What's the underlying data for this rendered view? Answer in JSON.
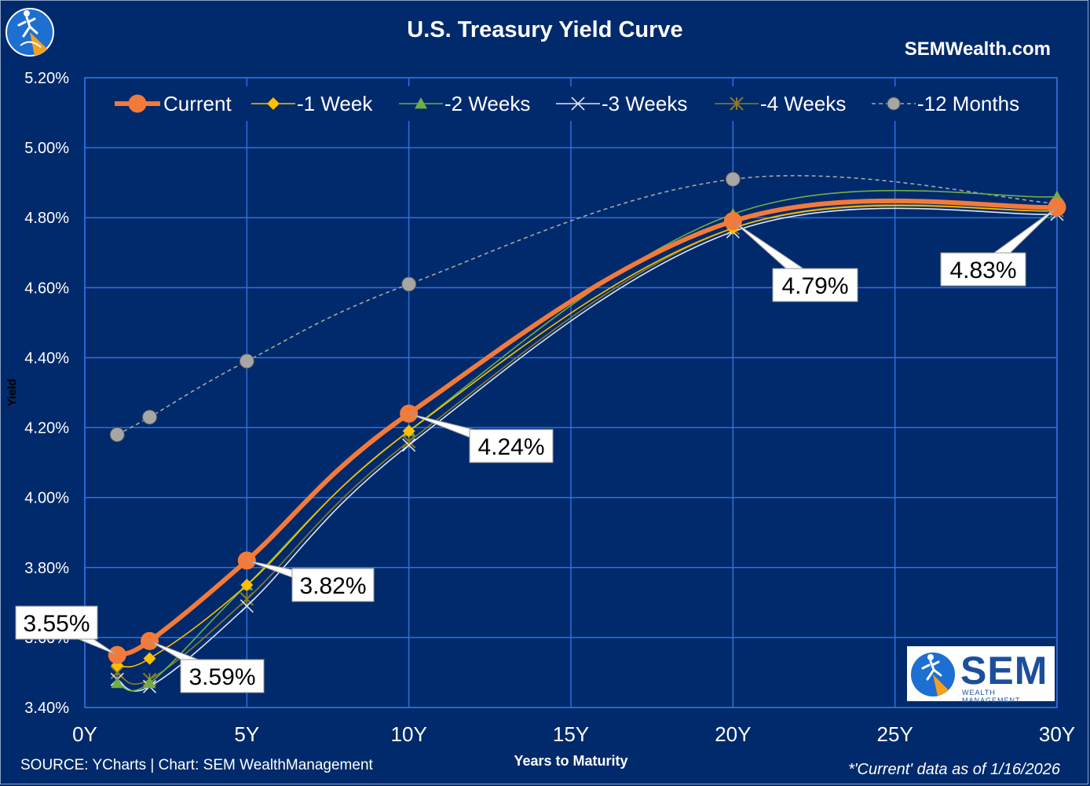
{
  "header": {
    "title": "U.S. Treasury Yield Curve",
    "website": "SEMWealth.com"
  },
  "footer": {
    "source": "SOURCE: YCharts | Chart: SEM WealthManagement",
    "note": "*'Current' data as of 1/16/2026"
  },
  "brand": {
    "logo_text": "SEM",
    "logo_subtext": "WEALTH MANAGEMENT",
    "logo_icon": "sem-runner-logo-icon"
  },
  "colors": {
    "background": "#002a6b",
    "grid": "#2f6fe0",
    "axis_text": "#ffffff"
  },
  "chart_data": {
    "type": "line",
    "title": "U.S. Treasury Yield Curve",
    "xlabel": "Years to Maturity",
    "ylabel": "Yield",
    "xlim": [
      0,
      30
    ],
    "ylim": [
      3.4,
      5.2
    ],
    "x_ticks": [
      0,
      5,
      10,
      15,
      20,
      25,
      30
    ],
    "x_tick_labels": [
      "0Y",
      "5Y",
      "10Y",
      "15Y",
      "20Y",
      "25Y",
      "30Y"
    ],
    "y_ticks": [
      3.4,
      3.6,
      3.8,
      4.0,
      4.2,
      4.4,
      4.6,
      4.8,
      5.0,
      5.2
    ],
    "y_tick_labels": [
      "3.40%",
      "3.60%",
      "3.80%",
      "4.00%",
      "4.20%",
      "4.40%",
      "4.60%",
      "4.80%",
      "5.00%",
      "5.20%"
    ],
    "grid": true,
    "legend_position": "top",
    "x": [
      1,
      2,
      5,
      10,
      20,
      30
    ],
    "series": [
      {
        "name": "Current",
        "values": [
          3.55,
          3.59,
          3.82,
          4.24,
          4.79,
          4.83
        ],
        "color": "#f47a3a",
        "marker": "circle",
        "style": "thick"
      },
      {
        "name": "-1 Week",
        "values": [
          3.52,
          3.54,
          3.75,
          4.19,
          4.77,
          4.82
        ],
        "color": "#ffc000",
        "marker": "diamond",
        "style": "solid"
      },
      {
        "name": "-2 Weeks",
        "values": [
          3.47,
          3.47,
          3.75,
          4.19,
          4.81,
          4.86
        ],
        "color": "#70ad47",
        "marker": "triangle",
        "style": "solid"
      },
      {
        "name": "-3 Weeks",
        "values": [
          3.48,
          3.46,
          3.69,
          4.15,
          4.76,
          4.81
        ],
        "color": "#dde6f5",
        "marker": "x",
        "style": "solid"
      },
      {
        "name": "-4 Weeks",
        "values": [
          3.5,
          3.48,
          3.71,
          4.16,
          4.77,
          4.82
        ],
        "color": "#8c7a2a",
        "marker": "star",
        "style": "solid"
      },
      {
        "name": "-12 Months",
        "values": [
          4.18,
          4.23,
          4.39,
          4.61,
          4.91,
          4.84
        ],
        "color": "#a6a6a6",
        "marker": "circle",
        "style": "dashed"
      }
    ],
    "annotations": [
      {
        "x": 1,
        "series": "Current",
        "label": "3.55%"
      },
      {
        "x": 2,
        "series": "Current",
        "label": "3.59%"
      },
      {
        "x": 5,
        "series": "Current",
        "label": "3.82%"
      },
      {
        "x": 10,
        "series": "Current",
        "label": "4.24%"
      },
      {
        "x": 20,
        "series": "Current",
        "label": "4.79%"
      },
      {
        "x": 30,
        "series": "Current",
        "label": "4.83%"
      }
    ]
  }
}
